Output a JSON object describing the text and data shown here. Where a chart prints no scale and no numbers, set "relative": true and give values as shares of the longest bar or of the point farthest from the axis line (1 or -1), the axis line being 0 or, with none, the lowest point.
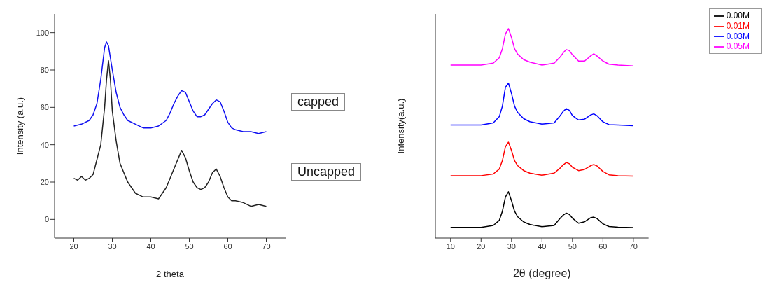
{
  "chart_data": [
    {
      "type": "line",
      "xlabel": "2 theta",
      "ylabel": "Intensity (a.u.)",
      "xlim": [
        15,
        75
      ],
      "xticks": [
        20,
        30,
        40,
        50,
        60,
        70
      ],
      "ylim": [
        -10,
        110
      ],
      "yticks": [
        0,
        20,
        40,
        60,
        80,
        100
      ],
      "grid": false,
      "legend": false,
      "annotations": [
        "capped",
        "Uncapped"
      ],
      "series": [
        {
          "color": "#1010f0",
          "x": [
            20,
            22,
            24,
            25,
            26,
            27,
            28,
            28.5,
            29,
            30,
            31,
            32,
            33,
            34,
            36,
            38,
            40,
            42,
            44,
            45,
            46,
            47,
            48,
            49,
            50,
            51,
            52,
            53,
            54,
            55,
            56,
            57,
            58,
            59,
            60,
            61,
            62,
            64,
            66,
            68,
            70
          ],
          "values": [
            50,
            51,
            53,
            56,
            62,
            75,
            92,
            95,
            93,
            80,
            68,
            60,
            56,
            53,
            51,
            49,
            49,
            50,
            53,
            57,
            62,
            66,
            69,
            68,
            63,
            58,
            55,
            55,
            56,
            59,
            62,
            64,
            63,
            58,
            52,
            49,
            48,
            47,
            47,
            46,
            47
          ]
        },
        {
          "color": "#222222",
          "x": [
            20,
            21,
            22,
            23,
            24,
            25,
            26,
            27,
            28,
            28.5,
            29,
            29.5,
            30,
            31,
            32,
            33,
            34,
            35,
            36,
            37,
            38,
            40,
            42,
            43,
            44,
            45,
            46,
            47,
            48,
            49,
            50,
            51,
            52,
            53,
            54,
            55,
            56,
            57,
            58,
            59,
            60,
            61,
            62,
            64,
            66,
            68,
            70
          ],
          "values": [
            22,
            21,
            23,
            21,
            22,
            24,
            32,
            40,
            60,
            75,
            85,
            75,
            58,
            42,
            30,
            25,
            20,
            17,
            14,
            13,
            12,
            12,
            11,
            14,
            17,
            22,
            27,
            32,
            37,
            33,
            26,
            20,
            17,
            16,
            17,
            20,
            25,
            27,
            23,
            17,
            12,
            10,
            10,
            9,
            7,
            8,
            7
          ]
        }
      ]
    },
    {
      "type": "line",
      "relative": true,
      "xlabel": "2θ (degree)",
      "ylabel": "Intensity(a.u.)",
      "xlim": [
        5,
        75
      ],
      "xticks": [
        10,
        20,
        30,
        40,
        50,
        60,
        70
      ],
      "grid": false,
      "legend": "top right",
      "x": [
        10,
        15,
        20,
        24,
        26,
        27,
        28,
        29,
        30,
        31,
        32,
        34,
        36,
        40,
        44,
        46,
        47,
        48,
        49,
        50,
        52,
        54,
        56,
        57,
        58,
        60,
        62,
        65,
        70
      ],
      "series": [
        {
          "name": "0.05M",
          "color": "#ff00ff",
          "values": [
            0.826,
            0.826,
            0.826,
            0.835,
            0.861,
            0.904,
            0.974,
            1,
            0.957,
            0.904,
            0.878,
            0.852,
            0.84,
            0.826,
            0.835,
            0.865,
            0.885,
            0.9,
            0.895,
            0.875,
            0.845,
            0.845,
            0.87,
            0.88,
            0.87,
            0.845,
            0.83,
            0.826,
            0.822
          ]
        },
        {
          "name": "0.03M",
          "color": "#0000ff",
          "values": [
            0.54,
            0.54,
            0.54,
            0.55,
            0.58,
            0.63,
            0.72,
            0.74,
            0.69,
            0.63,
            0.6,
            0.57,
            0.556,
            0.544,
            0.55,
            0.585,
            0.605,
            0.618,
            0.61,
            0.585,
            0.564,
            0.568,
            0.588,
            0.593,
            0.585,
            0.555,
            0.542,
            0.54,
            0.537
          ]
        },
        {
          "name": "0.01M",
          "color": "#ff0000",
          "values": [
            0.298,
            0.298,
            0.298,
            0.306,
            0.33,
            0.37,
            0.436,
            0.458,
            0.418,
            0.37,
            0.346,
            0.322,
            0.31,
            0.3,
            0.31,
            0.335,
            0.35,
            0.361,
            0.355,
            0.338,
            0.322,
            0.328,
            0.346,
            0.351,
            0.345,
            0.318,
            0.302,
            0.298,
            0.296
          ]
        },
        {
          "name": "0.00M",
          "color": "#000000",
          "values": [
            0.051,
            0.051,
            0.051,
            0.06,
            0.085,
            0.128,
            0.196,
            0.221,
            0.178,
            0.128,
            0.102,
            0.077,
            0.065,
            0.054,
            0.06,
            0.095,
            0.11,
            0.119,
            0.113,
            0.095,
            0.071,
            0.078,
            0.097,
            0.1,
            0.094,
            0.068,
            0.055,
            0.052,
            0.05
          ]
        }
      ]
    }
  ]
}
